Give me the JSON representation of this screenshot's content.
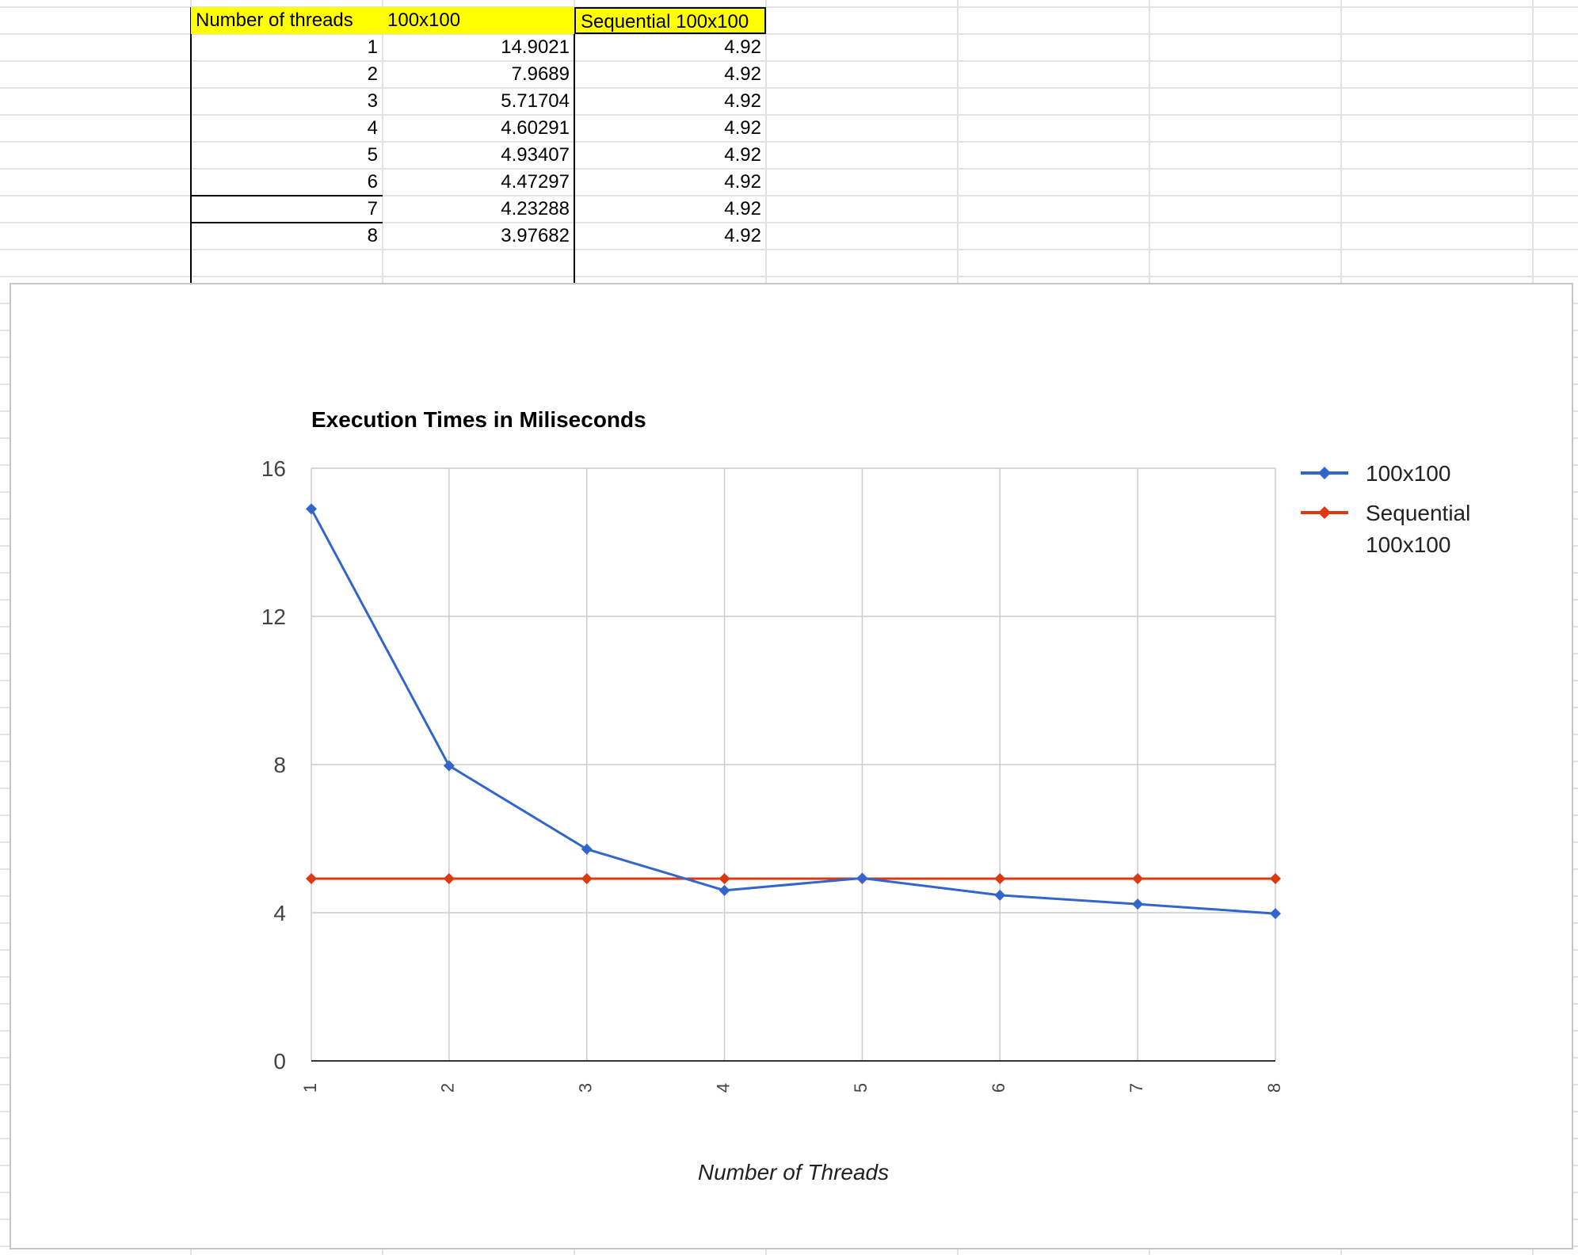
{
  "table": {
    "headers": [
      "Number of threads",
      "100x100",
      "Sequential 100x100"
    ],
    "rows": [
      [
        "1",
        "14.9021",
        "4.92"
      ],
      [
        "2",
        "7.9689",
        "4.92"
      ],
      [
        "3",
        "5.71704",
        "4.92"
      ],
      [
        "4",
        "4.60291",
        "4.92"
      ],
      [
        "5",
        "4.93407",
        "4.92"
      ],
      [
        "6",
        "4.47297",
        "4.92"
      ],
      [
        "7",
        "4.23288",
        "4.92"
      ],
      [
        "8",
        "3.97682",
        "4.92"
      ]
    ],
    "header_color": "#ffff00"
  },
  "chart_data": {
    "type": "line",
    "title": "Execution Times in Miliseconds",
    "xlabel": "Number of Threads",
    "ylabel": "",
    "categories": [
      "1",
      "2",
      "3",
      "4",
      "5",
      "6",
      "7",
      "8"
    ],
    "ylim": [
      0,
      16
    ],
    "yticks": [
      0,
      4,
      8,
      12,
      16
    ],
    "grid": true,
    "legend_position": "right",
    "series": [
      {
        "name": "100x100",
        "legend_lines": [
          "100x100"
        ],
        "color": "#3366cc",
        "marker": "diamond",
        "values": [
          14.9021,
          7.9689,
          5.71704,
          4.60291,
          4.93407,
          4.47297,
          4.23288,
          3.97682
        ]
      },
      {
        "name": "Sequential 100x100",
        "legend_lines": [
          "Sequential",
          "100x100"
        ],
        "color": "#dc3912",
        "marker": "diamond",
        "values": [
          4.92,
          4.92,
          4.92,
          4.92,
          4.92,
          4.92,
          4.92,
          4.92
        ]
      }
    ]
  }
}
